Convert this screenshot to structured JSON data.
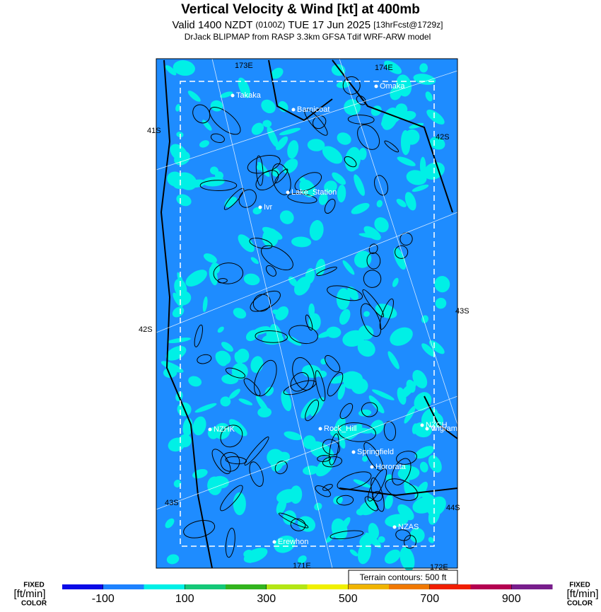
{
  "title": "Vertical Velocity & Wind [kt] at 400mb",
  "subtitle": [
    "Valid 1400 NZDT",
    "(0100Z)",
    "TUE 17 Jun 2025",
    "[13hrFcst@1729z]"
  ],
  "source": "DrJack BLIPMAP from RASP 3.3km GFSA Tdif WRF-ARW model",
  "terrain_note": "Terrain contours: 500 ft",
  "side_labels": {
    "left": [
      "FIXED",
      "[ft/min]",
      "COLOR"
    ],
    "right": [
      "FIXED",
      "[ft/min]",
      "COLOR"
    ]
  },
  "places": [
    "Takaka",
    "Barnicoat",
    "Omaka",
    "Lake_Station",
    "Ivr",
    "Rock_Hill",
    "NZHK",
    "NZCH",
    "Wigram",
    "Springfield",
    "Hororata",
    "NZAS",
    "Erewhon"
  ],
  "grid_labels": [
    "41S",
    "42S",
    "43S",
    "42S",
    "43S",
    "44S",
    "173E",
    "174E",
    "171E",
    "172E"
  ],
  "colorbar": {
    "range": [
      -200,
      1000
    ],
    "colors": [
      "#0a0ae6",
      "#1e82ff",
      "#00f0e6",
      "#14c878",
      "#32b41e",
      "#b4e614",
      "#f0f000",
      "#f0b400",
      "#f07800",
      "#f01e00",
      "#b40050",
      "#781e8c"
    ],
    "ticks": [
      -100,
      100,
      300,
      500,
      700,
      900
    ]
  }
}
